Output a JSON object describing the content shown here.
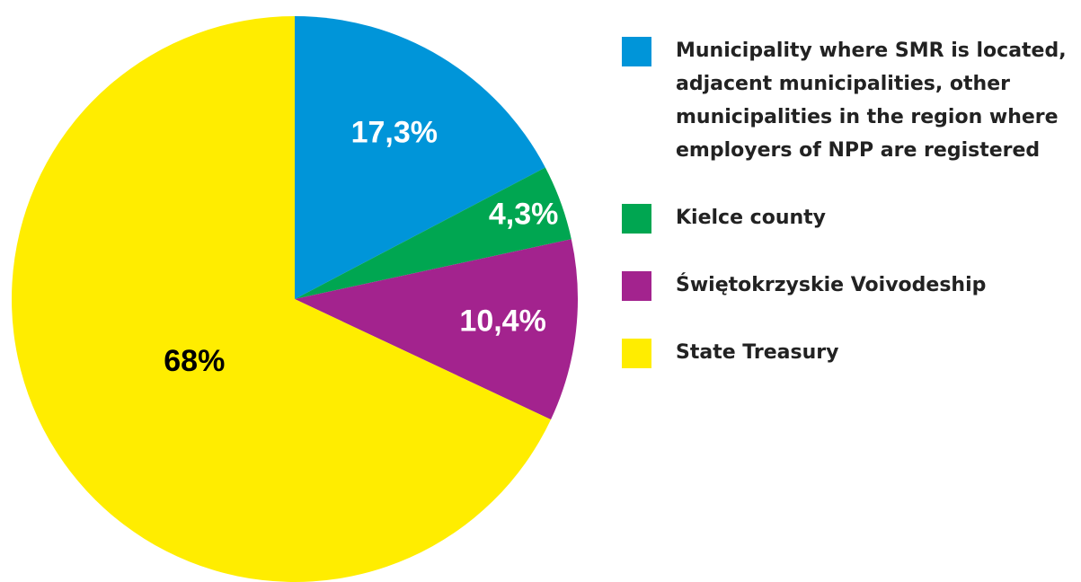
{
  "chart_data": {
    "type": "pie",
    "categories": [
      "Municipality where SMR is located, adjacent municipalities, other municipalities in the region where employers of NPP are registered",
      "Kielce county",
      "Świętokrzyskie Voivodeship",
      "State Treasury"
    ],
    "values": [
      17.3,
      4.3,
      10.4,
      68
    ],
    "value_labels": [
      "17,3%",
      "4,3%",
      "10,4%",
      "68%"
    ],
    "colors": [
      "#0095d9",
      "#00a651",
      "#a3238e",
      "#ffed00"
    ]
  }
}
